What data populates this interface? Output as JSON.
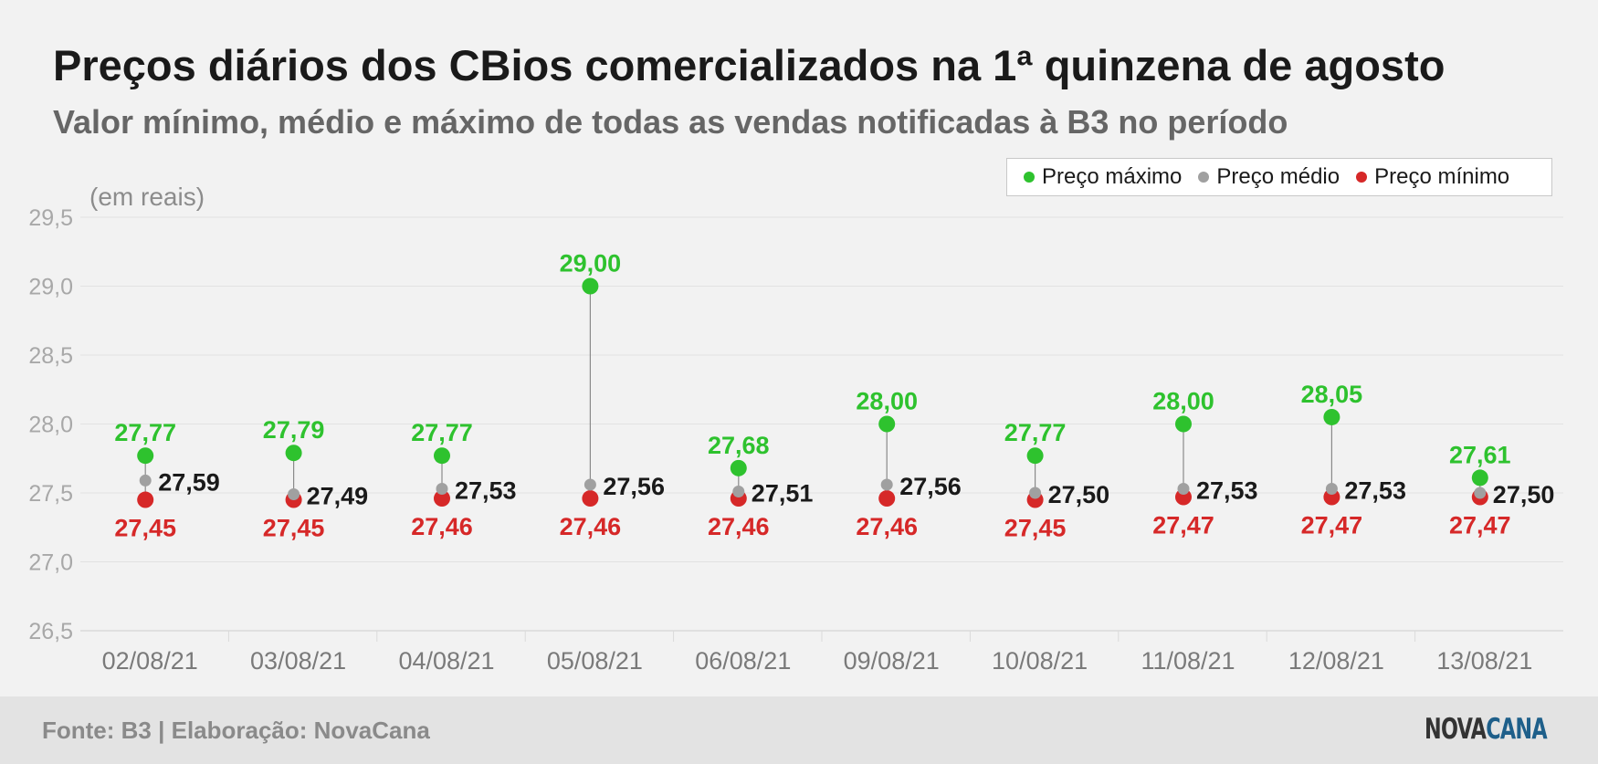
{
  "title": "Preços diários dos CBios comercializados na 1ª quinzena de agosto",
  "subtitle": "Valor mínimo, médio e máximo de todas as vendas notificadas à B3 no período",
  "unit_label": "(em reais)",
  "legend": {
    "max": "Preço máximo",
    "avg": "Preço médio",
    "min": "Preço mínimo"
  },
  "colors": {
    "max": "#2ec22e",
    "avg": "#a0a0a0",
    "min": "#d62828",
    "avg_label": "#1a1a1a"
  },
  "footer": {
    "source": "Fonte: B3 | Elaboração: NovaCana",
    "logo_part1": "NOVA",
    "logo_part2": "CANA"
  },
  "chart_data": {
    "type": "scatter",
    "title": "Preços diários dos CBios comercializados na 1ª quinzena de agosto",
    "subtitle": "Valor mínimo, médio e máximo de todas as vendas notificadas à B3 no período",
    "ylabel": "(em reais)",
    "ylim": [
      26.5,
      29.5
    ],
    "yticks": [
      "29,5",
      "29,0",
      "28,5",
      "28,0",
      "27,5",
      "27,0",
      "26,5"
    ],
    "grid": true,
    "legend_position": "top-right",
    "categories": [
      "02/08/21",
      "03/08/21",
      "04/08/21",
      "05/08/21",
      "06/08/21",
      "09/08/21",
      "10/08/21",
      "11/08/21",
      "12/08/21",
      "13/08/21"
    ],
    "series": [
      {
        "name": "Preço máximo",
        "values": [
          27.77,
          27.79,
          27.77,
          29.0,
          27.68,
          28.0,
          27.77,
          28.0,
          28.05,
          27.61
        ],
        "labels": [
          "27,77",
          "27,79",
          "27,77",
          "29,00",
          "27,68",
          "28,00",
          "27,77",
          "28,00",
          "28,05",
          "27,61"
        ]
      },
      {
        "name": "Preço médio",
        "values": [
          27.59,
          27.49,
          27.53,
          27.56,
          27.51,
          27.56,
          27.5,
          27.53,
          27.53,
          27.5
        ],
        "labels": [
          "27,59",
          "27,49",
          "27,53",
          "27,56",
          "27,51",
          "27,56",
          "27,50",
          "27,53",
          "27,53",
          "27,50"
        ]
      },
      {
        "name": "Preço mínimo",
        "values": [
          27.45,
          27.45,
          27.46,
          27.46,
          27.46,
          27.46,
          27.45,
          27.47,
          27.47,
          27.47
        ],
        "labels": [
          "27,45",
          "27,45",
          "27,46",
          "27,46",
          "27,46",
          "27,46",
          "27,45",
          "27,47",
          "27,47",
          "27,47"
        ]
      }
    ]
  }
}
